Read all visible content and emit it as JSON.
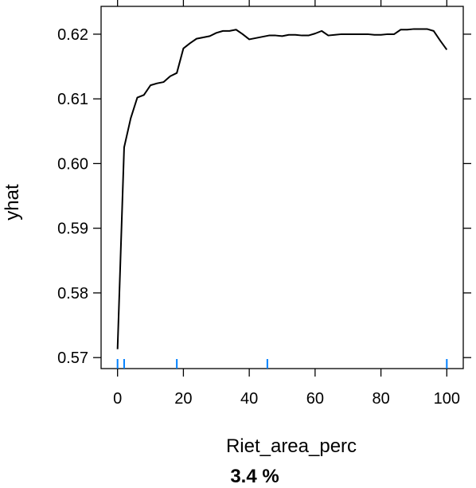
{
  "chart_data": {
    "type": "line",
    "title": "",
    "subtitle": "3.4 %",
    "xlabel": "Riet_area_perc",
    "ylabel": "yhat",
    "xlim": [
      -5,
      105
    ],
    "ylim": [
      0.5683,
      0.6243
    ],
    "xticks": [
      0,
      20,
      40,
      60,
      80,
      100
    ],
    "xtick_labels": [
      "0",
      "20",
      "40",
      "60",
      "80",
      "100"
    ],
    "yticks": [
      0.57,
      0.58,
      0.59,
      0.6,
      0.61,
      0.62
    ],
    "ytick_labels": [
      "0.57",
      "0.58",
      "0.59",
      "0.60",
      "0.61",
      "0.62"
    ],
    "grid": false,
    "line_color": "#000000",
    "rug_color": "#0080ff",
    "series": [
      {
        "x": [
          0,
          2,
          4,
          6,
          8,
          10,
          12,
          14,
          16,
          18,
          20,
          22,
          24,
          26,
          28,
          30,
          32,
          34,
          36,
          38,
          40,
          42,
          44,
          46,
          48,
          50,
          52,
          54,
          56,
          58,
          60,
          62,
          64,
          66,
          68,
          70,
          72,
          74,
          76,
          78,
          80,
          82,
          84,
          86,
          88,
          90,
          92,
          94,
          96,
          98,
          100
        ],
        "y": [
          0.5713,
          0.6025,
          0.607,
          0.6102,
          0.6106,
          0.6121,
          0.6124,
          0.6126,
          0.6135,
          0.614,
          0.6178,
          0.6186,
          0.6193,
          0.6195,
          0.6197,
          0.6202,
          0.6205,
          0.6205,
          0.6207,
          0.62,
          0.6192,
          0.6194,
          0.6196,
          0.6198,
          0.6198,
          0.6197,
          0.6199,
          0.6199,
          0.6198,
          0.6198,
          0.6201,
          0.6205,
          0.6198,
          0.6199,
          0.62,
          0.62,
          0.62,
          0.62,
          0.62,
          0.6199,
          0.6199,
          0.62,
          0.62,
          0.6207,
          0.6207,
          0.6208,
          0.6208,
          0.6208,
          0.6205,
          0.619,
          0.6176
        ]
      }
    ],
    "rug_x": [
      0,
      2,
      18,
      45.5,
      100
    ]
  }
}
